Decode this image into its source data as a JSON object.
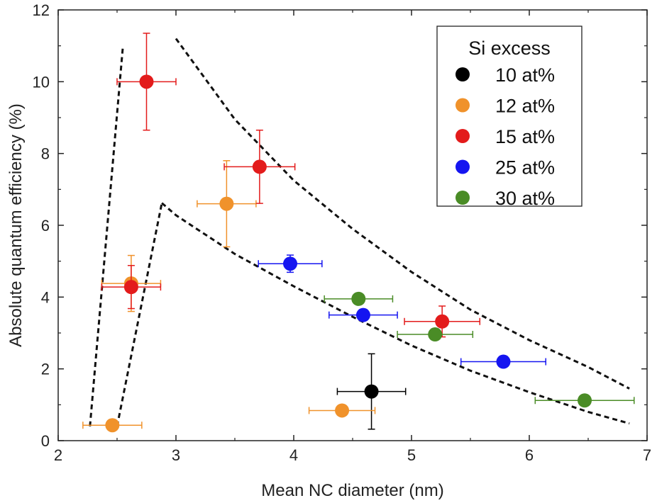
{
  "chart_data": {
    "type": "scatter",
    "title": "",
    "xlabel": "Mean NC diameter (nm)",
    "ylabel": "Absolute quantum efficiency (%)",
    "xlim": [
      2,
      7
    ],
    "ylim": [
      0,
      12
    ],
    "xticks": [
      2,
      3,
      4,
      5,
      6,
      7
    ],
    "yticks": [
      0,
      2,
      4,
      6,
      8,
      10,
      12
    ],
    "grid": false,
    "legend": {
      "title": "Si excess",
      "placement": "top-right"
    },
    "series": [
      {
        "name": "10 at%",
        "color": "#000000",
        "points": [
          {
            "x": 4.66,
            "y": 1.37,
            "xerr": 0.29,
            "yerr": 1.05
          }
        ]
      },
      {
        "name": "12 at%",
        "color": "#f0922b",
        "points": [
          {
            "x": 2.46,
            "y": 0.43,
            "xerr": 0.25,
            "yerr": 0
          },
          {
            "x": 2.62,
            "y": 4.38,
            "xerr": 0.25,
            "yerr": 0.78
          },
          {
            "x": 3.43,
            "y": 6.6,
            "xerr": 0.25,
            "yerr": 1.2
          },
          {
            "x": 4.41,
            "y": 0.84,
            "xerr": 0.28,
            "yerr": 0
          }
        ]
      },
      {
        "name": "15 at%",
        "color": "#e31b1b",
        "points": [
          {
            "x": 2.75,
            "y": 10.0,
            "xerr": 0.25,
            "yerr": 1.35
          },
          {
            "x": 2.62,
            "y": 4.28,
            "xerr": 0.25,
            "yerr": 0.6
          },
          {
            "x": 3.71,
            "y": 7.63,
            "xerr": 0.3,
            "yerr": 1.02
          },
          {
            "x": 5.26,
            "y": 3.32,
            "xerr": 0.32,
            "yerr": 0.43
          }
        ]
      },
      {
        "name": "25 at%",
        "color": "#1515f0",
        "points": [
          {
            "x": 3.97,
            "y": 4.93,
            "xerr": 0.27,
            "yerr": 0.24
          },
          {
            "x": 4.59,
            "y": 3.5,
            "xerr": 0.29,
            "yerr": 0
          },
          {
            "x": 5.78,
            "y": 2.2,
            "xerr": 0.36,
            "yerr": 0
          }
        ]
      },
      {
        "name": "30 at%",
        "color": "#4a8c26",
        "points": [
          {
            "x": 4.55,
            "y": 3.95,
            "xerr": 0.29,
            "yerr": 0
          },
          {
            "x": 5.2,
            "y": 2.96,
            "xerr": 0.32,
            "yerr": 0
          },
          {
            "x": 6.47,
            "y": 1.12,
            "xerr": 0.42,
            "yerr": 0
          }
        ]
      }
    ],
    "guide_curves": [
      {
        "name": "",
        "points": [
          [
            2.27,
            0.4
          ],
          [
            2.55,
            11.0
          ]
        ]
      },
      {
        "name": "",
        "points": [
          [
            2.5,
            0.4
          ],
          [
            2.88,
            6.62
          ]
        ]
      },
      {
        "name": "",
        "points": [
          [
            3.0,
            11.2
          ],
          [
            3.5,
            8.95
          ],
          [
            4.0,
            7.25
          ],
          [
            4.5,
            5.9
          ],
          [
            5.0,
            4.7
          ],
          [
            5.5,
            3.65
          ],
          [
            6.0,
            2.8
          ],
          [
            6.5,
            2.05
          ],
          [
            6.85,
            1.45
          ]
        ]
      },
      {
        "name": "",
        "points": [
          [
            2.88,
            6.62
          ],
          [
            3.0,
            6.28
          ],
          [
            3.5,
            5.2
          ],
          [
            4.0,
            4.3
          ],
          [
            4.5,
            3.45
          ],
          [
            5.0,
            2.65
          ],
          [
            5.5,
            1.95
          ],
          [
            6.0,
            1.35
          ],
          [
            6.5,
            0.8
          ],
          [
            6.85,
            0.48
          ]
        ]
      }
    ]
  }
}
